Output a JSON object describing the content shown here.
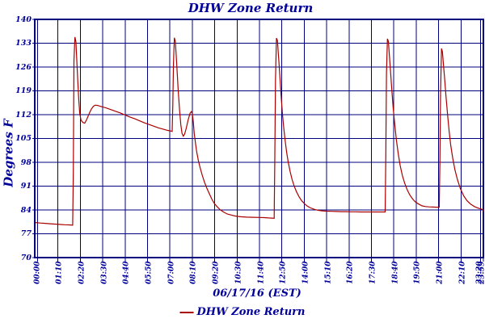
{
  "colors": {
    "navy_text": "#000099",
    "grid": "#00007E",
    "line": "#AA0000",
    "background": "#FFFFFF"
  },
  "legend": {
    "label": "DHW Zone Return"
  },
  "chart_data": {
    "type": "line",
    "title": "DHW Zone Return",
    "ylabel": "Degrees F",
    "xlabel": "06/17/16 (EST)",
    "grid": true,
    "legend_position": "bottom-center",
    "ylim": [
      70,
      140
    ],
    "yticks": [
      "140",
      "133",
      "126",
      "119",
      "112",
      "105",
      "98",
      "91",
      "84",
      "77",
      "70"
    ],
    "ytick_values": [
      140,
      133,
      126,
      119,
      112,
      105,
      98,
      91,
      84,
      77,
      70
    ],
    "xticks": [
      "00:00",
      "01:10",
      "02:20",
      "03:30",
      "04:40",
      "05:50",
      "07:00",
      "08:10",
      "09:20",
      "10:30",
      "11:40",
      "12:50",
      "14:00",
      "15:10",
      "16:20",
      "17:30",
      "18:40",
      "19:50",
      "21:00",
      "22:10",
      "23:20"
    ],
    "xtick_interval_minutes": 70,
    "x_end_label": "23:59",
    "xlim_minutes": [
      0,
      1439
    ],
    "series": [
      {
        "name": "DHW Zone Return",
        "color": "#AA0000",
        "points": [
          [
            0,
            80.3
          ],
          [
            15,
            80.15
          ],
          [
            30,
            80.05
          ],
          [
            45,
            79.95
          ],
          [
            60,
            79.85
          ],
          [
            75,
            79.75
          ],
          [
            90,
            79.65
          ],
          [
            105,
            79.6
          ],
          [
            116,
            79.55
          ],
          [
            118,
            95
          ],
          [
            120,
            128
          ],
          [
            123,
            134.8
          ],
          [
            126,
            133.5
          ],
          [
            129,
            128
          ],
          [
            132,
            122
          ],
          [
            135,
            116.5
          ],
          [
            138,
            112.5
          ],
          [
            142,
            110.4
          ],
          [
            148,
            109.7
          ],
          [
            154,
            109.5
          ],
          [
            160,
            110.6
          ],
          [
            167,
            112.2
          ],
          [
            174,
            113.6
          ],
          [
            181,
            114.5
          ],
          [
            187,
            114.8
          ],
          [
            194,
            114.7
          ],
          [
            205,
            114.4
          ],
          [
            220,
            114.0
          ],
          [
            235,
            113.5
          ],
          [
            250,
            113.0
          ],
          [
            265,
            112.5
          ],
          [
            280,
            111.9
          ],
          [
            295,
            111.3
          ],
          [
            310,
            110.8
          ],
          [
            325,
            110.2
          ],
          [
            340,
            109.6
          ],
          [
            355,
            109.1
          ],
          [
            370,
            108.6
          ],
          [
            385,
            108.1
          ],
          [
            400,
            107.7
          ],
          [
            412,
            107.4
          ],
          [
            422,
            107.2
          ],
          [
            427,
            107.1
          ],
          [
            429,
            115
          ],
          [
            431,
            127
          ],
          [
            434,
            134.6
          ],
          [
            437,
            133.5
          ],
          [
            440,
            129
          ],
          [
            443,
            124
          ],
          [
            446,
            119
          ],
          [
            450,
            113.5
          ],
          [
            454,
            109
          ],
          [
            458,
            106.5
          ],
          [
            462,
            105.7
          ],
          [
            466,
            106.3
          ],
          [
            471,
            108
          ],
          [
            477,
            110.5
          ],
          [
            483,
            112.4
          ],
          [
            487,
            112.9
          ],
          [
            490,
            112.4
          ],
          [
            493,
            110
          ],
          [
            496,
            106.5
          ],
          [
            500,
            103.5
          ],
          [
            504,
            101
          ],
          [
            509,
            98.5
          ],
          [
            515,
            96.2
          ],
          [
            521,
            94.2
          ],
          [
            528,
            92.2
          ],
          [
            535,
            90.5
          ],
          [
            543,
            88.8
          ],
          [
            551,
            87.2
          ],
          [
            559,
            85.9
          ],
          [
            568,
            84.9
          ],
          [
            578,
            84.0
          ],
          [
            589,
            83.3
          ],
          [
            600,
            82.8
          ],
          [
            612,
            82.5
          ],
          [
            625,
            82.2
          ],
          [
            640,
            82.0
          ],
          [
            660,
            81.9
          ],
          [
            680,
            81.85
          ],
          [
            700,
            81.8
          ],
          [
            715,
            81.75
          ],
          [
            728,
            81.65
          ],
          [
            740,
            81.6
          ],
          [
            746,
            81.55
          ],
          [
            748,
            100
          ],
          [
            750,
            122
          ],
          [
            753,
            134.5
          ],
          [
            756,
            133.8
          ],
          [
            759,
            130
          ],
          [
            762,
            126
          ],
          [
            765,
            121.5
          ],
          [
            768,
            117
          ],
          [
            772,
            112
          ],
          [
            776,
            108
          ],
          [
            780,
            104.5
          ],
          [
            785,
            101
          ],
          [
            790,
            98
          ],
          [
            796,
            95.2
          ],
          [
            802,
            92.9
          ],
          [
            809,
            90.9
          ],
          [
            816,
            89.3
          ],
          [
            824,
            87.8
          ],
          [
            832,
            86.7
          ],
          [
            841,
            85.8
          ],
          [
            850,
            85.1
          ],
          [
            860,
            84.6
          ],
          [
            871,
            84.2
          ],
          [
            883,
            83.9
          ],
          [
            896,
            83.75
          ],
          [
            910,
            83.65
          ],
          [
            925,
            83.6
          ],
          [
            940,
            83.55
          ],
          [
            955,
            83.5
          ],
          [
            970,
            83.5
          ],
          [
            985,
            83.45
          ],
          [
            1000,
            83.45
          ],
          [
            1015,
            83.4
          ],
          [
            1030,
            83.4
          ],
          [
            1050,
            83.4
          ],
          [
            1070,
            83.4
          ],
          [
            1085,
            83.4
          ],
          [
            1093,
            83.4
          ],
          [
            1095,
            100
          ],
          [
            1097,
            124
          ],
          [
            1100,
            134.3
          ],
          [
            1103,
            133.5
          ],
          [
            1106,
            129.5
          ],
          [
            1110,
            124.5
          ],
          [
            1114,
            119
          ],
          [
            1118,
            114
          ],
          [
            1123,
            109
          ],
          [
            1128,
            104.5
          ],
          [
            1134,
            100.5
          ],
          [
            1140,
            97
          ],
          [
            1147,
            94
          ],
          [
            1154,
            91.8
          ],
          [
            1162,
            89.9
          ],
          [
            1170,
            88.4
          ],
          [
            1179,
            87.2
          ],
          [
            1188,
            86.3
          ],
          [
            1198,
            85.7
          ],
          [
            1208,
            85.2
          ],
          [
            1219,
            85.0
          ],
          [
            1230,
            84.9
          ],
          [
            1242,
            84.85
          ],
          [
            1254,
            84.8
          ],
          [
            1262,
            84.8
          ],
          [
            1264,
            98
          ],
          [
            1266,
            118
          ],
          [
            1269,
            131.4
          ],
          [
            1272,
            130.5
          ],
          [
            1275,
            127
          ],
          [
            1279,
            122.5
          ],
          [
            1283,
            117.5
          ],
          [
            1288,
            112
          ],
          [
            1293,
            107
          ],
          [
            1298,
            103
          ],
          [
            1304,
            99.3
          ],
          [
            1311,
            95.8
          ],
          [
            1319,
            92.9
          ],
          [
            1328,
            90.3
          ],
          [
            1338,
            88.2
          ],
          [
            1349,
            86.7
          ],
          [
            1360,
            85.7
          ],
          [
            1372,
            85.0
          ],
          [
            1385,
            84.5
          ],
          [
            1399,
            84.1
          ],
          [
            1413,
            83.8
          ],
          [
            1426,
            83.6
          ],
          [
            1439,
            83.5
          ]
        ]
      }
    ]
  }
}
